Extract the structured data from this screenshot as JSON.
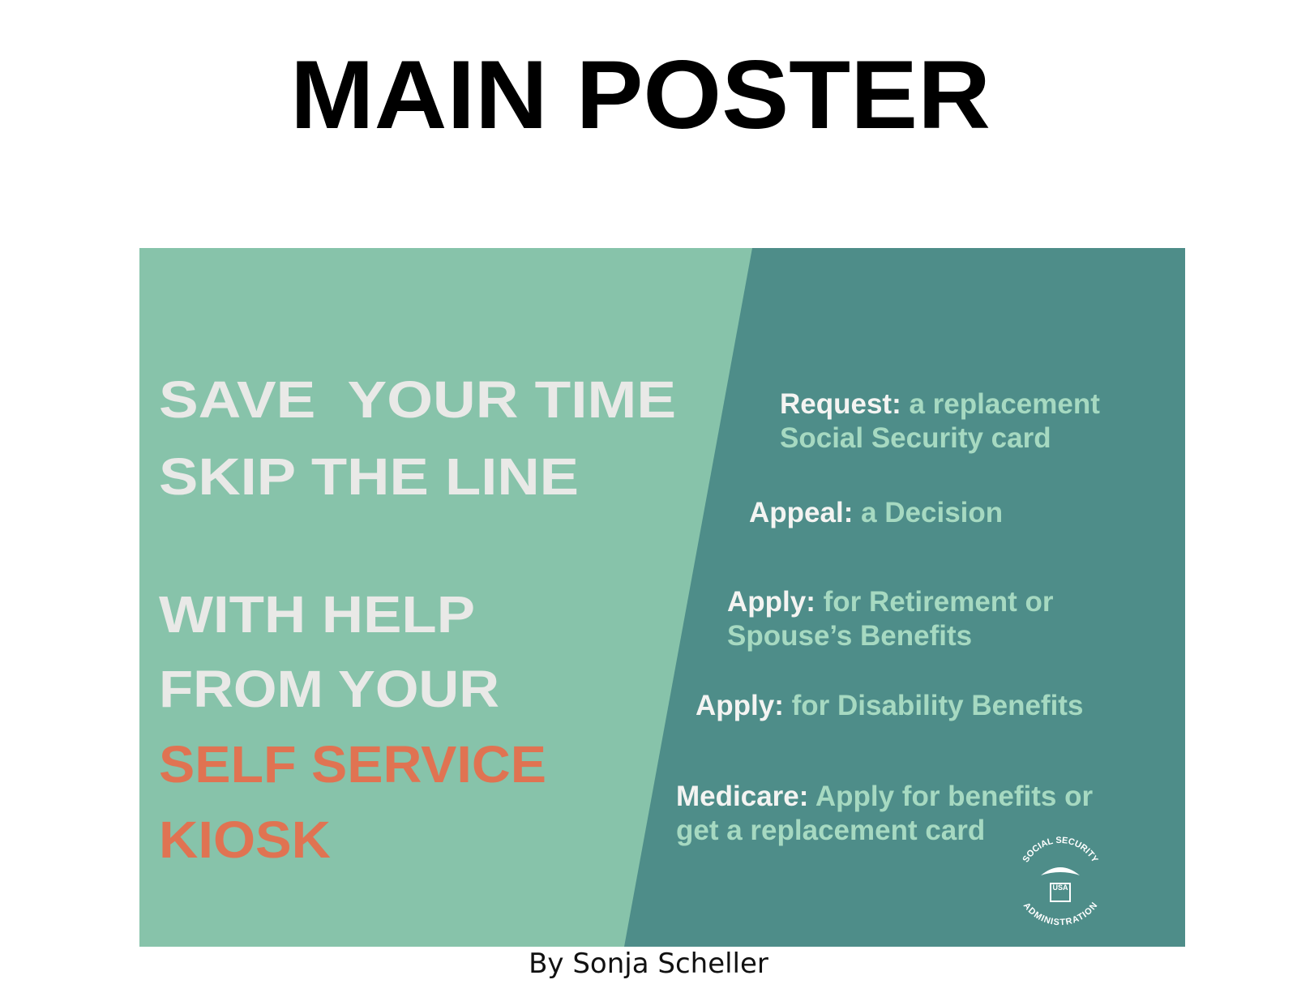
{
  "header": {
    "title": "MAIN POSTER"
  },
  "poster": {
    "headline": [
      "SAVE  YOUR TIME",
      "SKIP THE LINE",
      "WITH HELP",
      "FROM YOUR"
    ],
    "highlight": [
      "SELF SERVICE",
      "KIOSK"
    ],
    "services": [
      {
        "label": "Request:",
        "text": [
          "a replacement",
          "Social Security card"
        ]
      },
      {
        "label": "Appeal:",
        "text": [
          "a Decision"
        ]
      },
      {
        "label": "Apply:",
        "text": [
          "for Retirement or",
          "Spouse’s Benefits"
        ]
      },
      {
        "label": "Apply:",
        "text": [
          "for Disability Benefits"
        ]
      },
      {
        "label": "Medicare:",
        "text": [
          "Apply for benefits or",
          "get a replacement card"
        ]
      }
    ],
    "seal": {
      "top": "SOCIAL SECURITY",
      "bottom": "ADMINISTRATION",
      "center": "USA"
    }
  },
  "footer": {
    "credit": "By Sonja Scheller"
  }
}
